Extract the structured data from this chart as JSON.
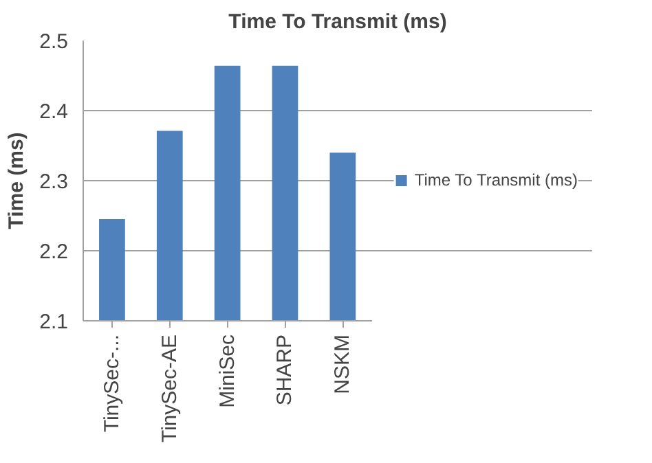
{
  "chart_data": {
    "type": "bar",
    "title": "Time To Transmit (ms)",
    "ylabel": "Time (ms)",
    "categories": [
      "TinySec-...",
      "TinySec-AE",
      "MiniSec",
      "SHARP",
      "NSKM"
    ],
    "series": [
      {
        "name": "Time To Transmit (ms)",
        "color": "#4f81bd",
        "values": [
          2.245,
          2.371,
          2.464,
          2.464,
          2.34
        ]
      }
    ],
    "ylim": [
      2.1,
      2.5
    ],
    "yticks": [
      2.1,
      2.2,
      2.3,
      2.4,
      2.5
    ],
    "grid": "y",
    "legend": "right"
  }
}
